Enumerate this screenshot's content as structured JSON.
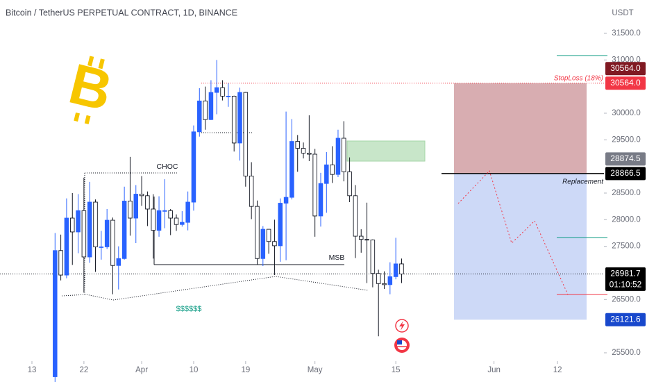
{
  "chart_data": {
    "type": "candlestick",
    "title": "Bitcoin / TetherUS PERPETUAL CONTRACT, 1D, BINANCE",
    "y_axis_label": "USDT",
    "up_color": "#2962ff",
    "down_color": "#ffffff",
    "x": [
      4,
      5,
      6,
      7,
      8,
      9,
      10,
      11,
      12,
      13,
      14,
      15,
      16,
      17,
      18,
      19,
      20,
      21,
      22,
      23,
      24,
      25,
      26,
      27,
      28,
      29,
      30,
      31,
      32,
      33,
      34,
      35,
      36,
      37,
      38,
      39,
      40,
      41,
      42,
      43,
      44,
      45,
      46,
      47,
      48,
      49,
      50,
      51,
      52,
      53,
      54,
      55,
      56,
      57,
      58,
      59,
      60,
      61,
      62,
      63,
      64
    ],
    "open": [
      25050,
      27420,
      26960,
      28030,
      27770,
      28170,
      27300,
      28330,
      27490,
      27490,
      27990,
      27140,
      27270,
      28350,
      28030,
      28480,
      28450,
      28200,
      27800,
      28170,
      28170,
      28030,
      27910,
      27950,
      28330,
      29650,
      30230,
      29880,
      30390,
      30480,
      30320,
      30320,
      29440,
      30390,
      28820,
      28250,
      27270,
      27820,
      27590,
      27510,
      28310,
      28420,
      29470,
      29340,
      29250,
      29230,
      28070,
      28680,
      29030,
      28850,
      29530,
      28900,
      28450,
      27690,
      27630,
      27620,
      26990,
      26800,
      26780,
      26930,
      27170
    ],
    "high": [
      27750,
      27720,
      28400,
      28500,
      28480,
      28790,
      28710,
      28380,
      27790,
      28200,
      28040,
      27500,
      28620,
      29180,
      28650,
      28820,
      28530,
      28480,
      28440,
      28760,
      28200,
      28100,
      28160,
      28530,
      29770,
      30470,
      30500,
      30620,
      31000,
      30620,
      30560,
      30330,
      30480,
      30400,
      29080,
      28360,
      27880,
      27820,
      28000,
      28400,
      30030,
      29890,
      29590,
      29450,
      29960,
      29330,
      28880,
      29270,
      29380,
      29690,
      29850,
      29170,
      28650,
      27820,
      28320,
      27630,
      27060,
      27030,
      27200,
      27660,
      27270
    ],
    "low": [
      24950,
      26860,
      26900,
      27150,
      27370,
      26630,
      27190,
      27020,
      27250,
      27450,
      26600,
      26690,
      27250,
      27700,
      27560,
      28260,
      27880,
      27270,
      27680,
      27840,
      27710,
      27790,
      27870,
      27800,
      28170,
      29560,
      29690,
      29870,
      29980,
      30240,
      30120,
      29280,
      29110,
      28620,
      28010,
      27150,
      27130,
      27360,
      26960,
      27210,
      27240,
      28380,
      28900,
      29150,
      29100,
      27680,
      27870,
      28130,
      28690,
      28800,
      28720,
      28330,
      27280,
      27380,
      26810,
      26730,
      25810,
      26700,
      26600,
      26880,
      26810
    ],
    "close": [
      27420,
      26960,
      28030,
      27770,
      28170,
      27300,
      28330,
      27490,
      27490,
      27990,
      27140,
      27270,
      28350,
      28030,
      28480,
      28450,
      28200,
      27800,
      28170,
      28170,
      28030,
      27910,
      27950,
      28330,
      29650,
      30230,
      29880,
      30390,
      30480,
      30320,
      30320,
      29440,
      30390,
      28820,
      28250,
      27270,
      27820,
      27590,
      27510,
      28310,
      28420,
      29470,
      29340,
      29250,
      29230,
      28070,
      28680,
      29030,
      28850,
      29530,
      28900,
      28450,
      27690,
      27630,
      27620,
      26990,
      26800,
      26780,
      26930,
      27170,
      26980
    ],
    "xlim": [
      -5.53,
      99.04
    ],
    "xticks": [
      {
        "value": 0,
        "label": "13"
      },
      {
        "value": 9,
        "label": "22"
      },
      {
        "value": 19,
        "label": "Apr"
      },
      {
        "value": 28,
        "label": "10"
      },
      {
        "value": 37,
        "label": "19"
      },
      {
        "value": 49,
        "label": "May"
      },
      {
        "value": 63,
        "label": "15"
      },
      {
        "value": 80,
        "label": "Jun"
      },
      {
        "value": 91,
        "label": "12"
      }
    ],
    "ylim": [
      25343,
      32126
    ],
    "yticks": [
      {
        "value": 25500,
        "label": "25500.0"
      },
      {
        "value": 26500,
        "label": "26500.0"
      },
      {
        "value": 27500,
        "label": "27500.0"
      },
      {
        "value": 28000,
        "label": "28000.0"
      },
      {
        "value": 28500,
        "label": "28500.0"
      },
      {
        "value": 29500,
        "label": "29500.0"
      },
      {
        "value": 30000,
        "label": "30000.0"
      },
      {
        "value": 31000,
        "label": "31000.0"
      },
      {
        "value": 31500,
        "label": "31500.0"
      }
    ],
    "price_labels": [
      {
        "value": 30564,
        "label": "30564.0",
        "color": "#f23645"
      },
      {
        "value": 30564,
        "label": "30564.0",
        "color": "#801922"
      },
      {
        "value": 28866.5,
        "label": "28866.5",
        "color": "#000000"
      },
      {
        "value": 28874.5,
        "label": "28874.5",
        "color": "#787b86"
      },
      {
        "value": 26981.7,
        "label": "26981.7",
        "color": "#000000"
      },
      {
        "value": 26121.6,
        "label": "26121.6",
        "color": "#1848cc"
      }
    ],
    "countdown": "01:10:52",
    "annotations": {
      "stop_loss": "StopLoss (18%)",
      "replacement": "Replacement",
      "choc": "CHOC",
      "msb": "MSB",
      "liquidity": "$$$$$$"
    }
  }
}
